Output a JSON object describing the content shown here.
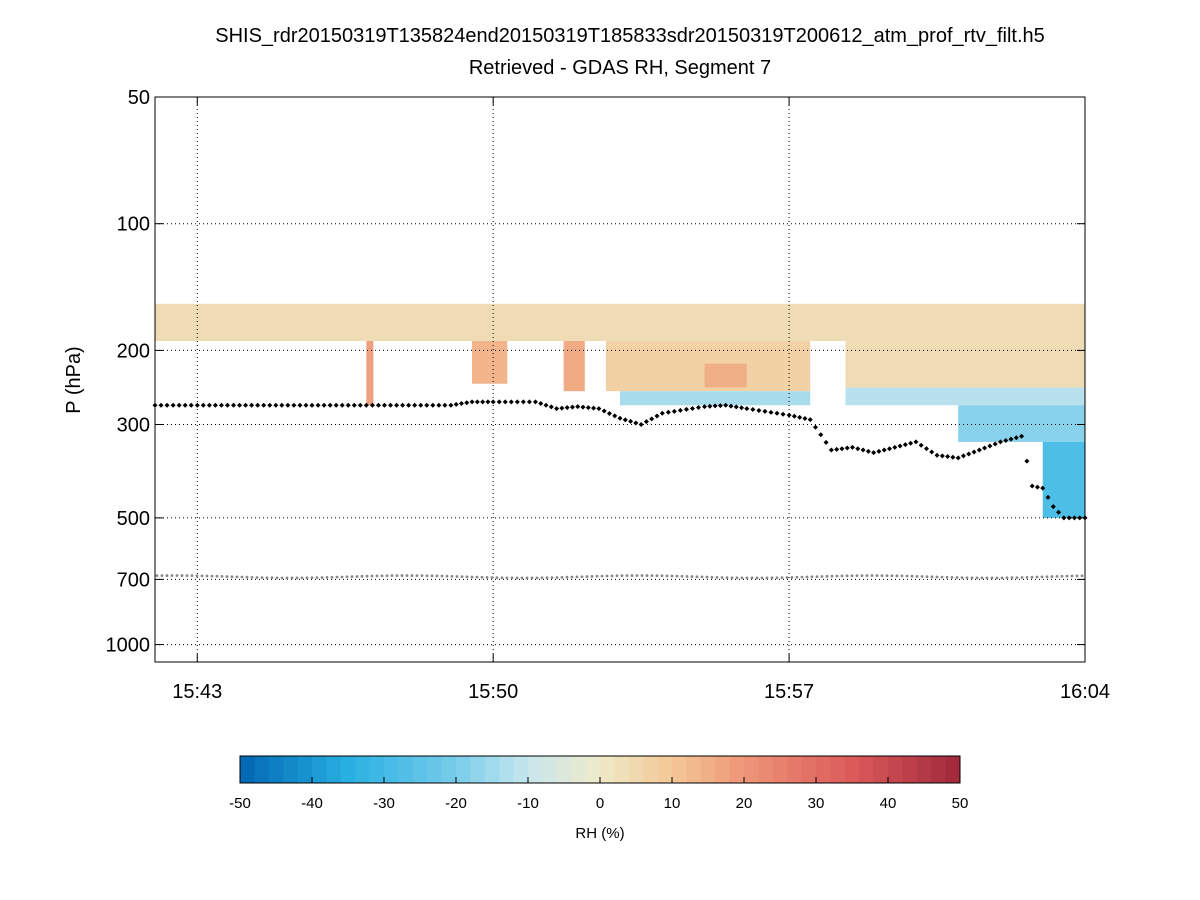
{
  "chart_data": {
    "type": "heatmap",
    "title": "SHIS_rdr20150319T135824end20150319T185833sdr20150319T200612_atm_prof_rtv_filt.h5",
    "subtitle": "Retrieved - GDAS RH, Segment 7",
    "xlabel": "",
    "ylabel": "P (hPa)",
    "x_axis": {
      "type": "time",
      "range": [
        "15:42",
        "16:04"
      ],
      "ticks": [
        "15:43",
        "15:50",
        "15:57",
        "16:04"
      ],
      "grid": true
    },
    "y_axis": {
      "scale": "log",
      "reversed": true,
      "range": [
        50,
        1100
      ],
      "ticks": [
        50,
        100,
        200,
        300,
        500,
        700,
        1000
      ],
      "grid": true
    },
    "colorbar": {
      "label": "RH (%)",
      "range": [
        -50,
        50
      ],
      "ticks": [
        -50,
        -40,
        -30,
        -20,
        -10,
        0,
        10,
        20,
        30,
        40,
        50
      ],
      "placement": "bottom"
    },
    "cloud_top_series": {
      "points": [
        [
          "15:42",
          270
        ],
        [
          "15:43",
          270
        ],
        [
          "15:44",
          270
        ],
        [
          "15:45",
          270
        ],
        [
          "15:46",
          270
        ],
        [
          "15:47",
          270
        ],
        [
          "15:48",
          270
        ],
        [
          "15:49",
          270
        ],
        [
          "15:49:30",
          265
        ],
        [
          "15:50",
          265
        ],
        [
          "15:51",
          265
        ],
        [
          "15:51:30",
          275
        ],
        [
          "15:52",
          272
        ],
        [
          "15:52:30",
          275
        ],
        [
          "15:53",
          290
        ],
        [
          "15:53:30",
          300
        ],
        [
          "15:54",
          282
        ],
        [
          "15:55",
          272
        ],
        [
          "15:55:30",
          270
        ],
        [
          "15:56",
          275
        ],
        [
          "15:57",
          285
        ],
        [
          "15:57:30",
          292
        ],
        [
          "15:58",
          345
        ],
        [
          "15:58:30",
          340
        ],
        [
          "15:59",
          350
        ],
        [
          "15:59:30",
          340
        ],
        [
          "16:00",
          330
        ],
        [
          "16:00:30",
          355
        ],
        [
          "16:01",
          360
        ],
        [
          "16:01:30",
          345
        ],
        [
          "16:02",
          330
        ],
        [
          "16:02:30",
          320
        ],
        [
          "16:02:45",
          420
        ],
        [
          "16:03",
          425
        ],
        [
          "16:03:15",
          470
        ],
        [
          "16:03:30",
          500
        ],
        [
          "16:04",
          500
        ]
      ]
    },
    "surface_series": {
      "pressure": 690,
      "range": [
        "15:42",
        "16:04"
      ]
    },
    "rh_regions": [
      {
        "t": [
          "15:42",
          "16:04"
        ],
        "p": [
          155,
          190
        ],
        "rh": 4
      },
      {
        "t": [
          "15:47",
          "15:47:10"
        ],
        "p": [
          190,
          270
        ],
        "rh": 18
      },
      {
        "t": [
          "15:49:30",
          "15:50:20"
        ],
        "p": [
          190,
          240
        ],
        "rh": 14
      },
      {
        "t": [
          "15:51:40",
          "15:52:10"
        ],
        "p": [
          190,
          250
        ],
        "rh": 16
      },
      {
        "t": [
          "15:52:40",
          "15:57:30"
        ],
        "p": [
          190,
          250
        ],
        "rh": 7
      },
      {
        "t": [
          "15:55",
          "15:56"
        ],
        "p": [
          215,
          245
        ],
        "rh": 15
      },
      {
        "t": [
          "15:53",
          "15:57:30"
        ],
        "p": [
          250,
          270
        ],
        "rh": -14
      },
      {
        "t": [
          "15:58:20",
          "16:04"
        ],
        "p": [
          190,
          245
        ],
        "rh": 4
      },
      {
        "t": [
          "15:58:20",
          "16:04"
        ],
        "p": [
          245,
          270
        ],
        "rh": -12
      },
      {
        "t": [
          "16:01",
          "16:04"
        ],
        "p": [
          270,
          330
        ],
        "rh": -18
      },
      {
        "t": [
          "16:03",
          "16:04"
        ],
        "p": [
          330,
          500
        ],
        "rh": -28
      }
    ]
  }
}
